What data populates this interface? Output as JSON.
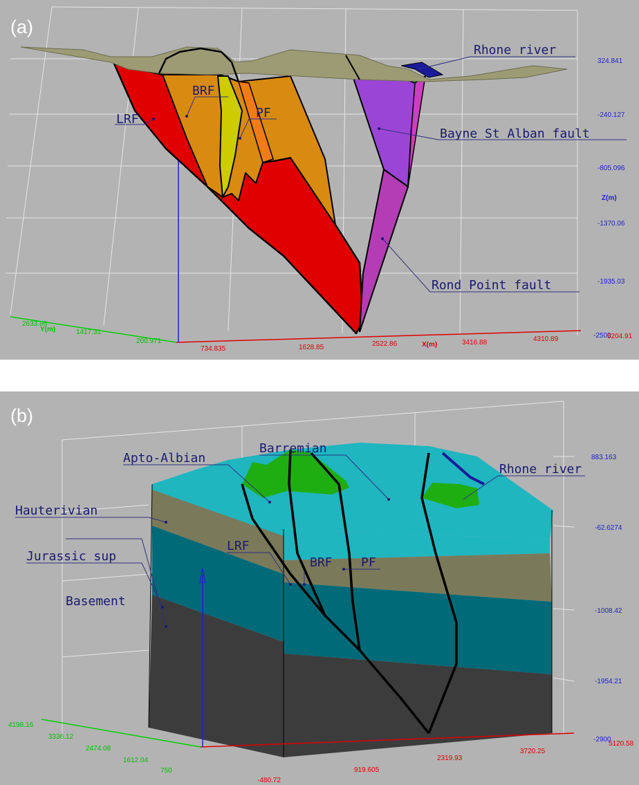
{
  "panels": [
    {
      "id": "a",
      "label": "(a)",
      "background": "#b3b3b3",
      "z_axis": {
        "title": "Z(m)",
        "ticks": [
          "324.841",
          "-240.127",
          "-805.096",
          "-1370.06",
          "-1935.03",
          "-2500"
        ]
      },
      "x_axis": {
        "title": "X(m)",
        "ticks": [
          "734.835",
          "1628.85",
          "2522.86",
          "3416.88",
          "4310.89",
          "5204.91"
        ]
      },
      "y_axis": {
        "title": "Y(m)",
        "ticks": [
          "2633.66",
          "1417.31",
          "200.971"
        ]
      },
      "labels": {
        "rhone": "Rhone river",
        "lrf": "LRF",
        "brf": "BRF",
        "pf": "PF",
        "bayne": "Bayne St Alban fault",
        "rond": "Rond Point fault"
      },
      "colors": {
        "lrf": "#e00000",
        "brf": "#d98a10",
        "pf": "#cccc00",
        "bayne": "#9b45d6",
        "rond": "#b43cb4",
        "surface": "#9c9b74"
      }
    },
    {
      "id": "b",
      "label": "(b)",
      "background": "#b3b3b3",
      "z_axis": {
        "ticks": [
          "883.163",
          "-62.6274",
          "-1008.42",
          "-1954.21",
          "-2900"
        ]
      },
      "x_axis": {
        "ticks": [
          "-480.72",
          "919.605",
          "2319.93",
          "3720.25",
          "5120.58"
        ]
      },
      "y_axis": {
        "ticks": [
          "4198.16",
          "3336.12",
          "2474.08",
          "1612.04",
          "750"
        ]
      },
      "labels": {
        "apto": "Apto-Albian",
        "barremian": "Barremian",
        "rhone": "Rhone river",
        "hauterivian": "Hauterivian",
        "jurassic": "Jurassic sup",
        "basement": "Basement",
        "lrf": "LRF",
        "brf": "BRF",
        "pf": "PF"
      },
      "colors": {
        "apto": "#1fae12",
        "barremian": "#1fb6c0",
        "hauterivian": "#7a7a5a",
        "jurassic": "#006a78",
        "basement": "#3c3c3c"
      }
    }
  ]
}
